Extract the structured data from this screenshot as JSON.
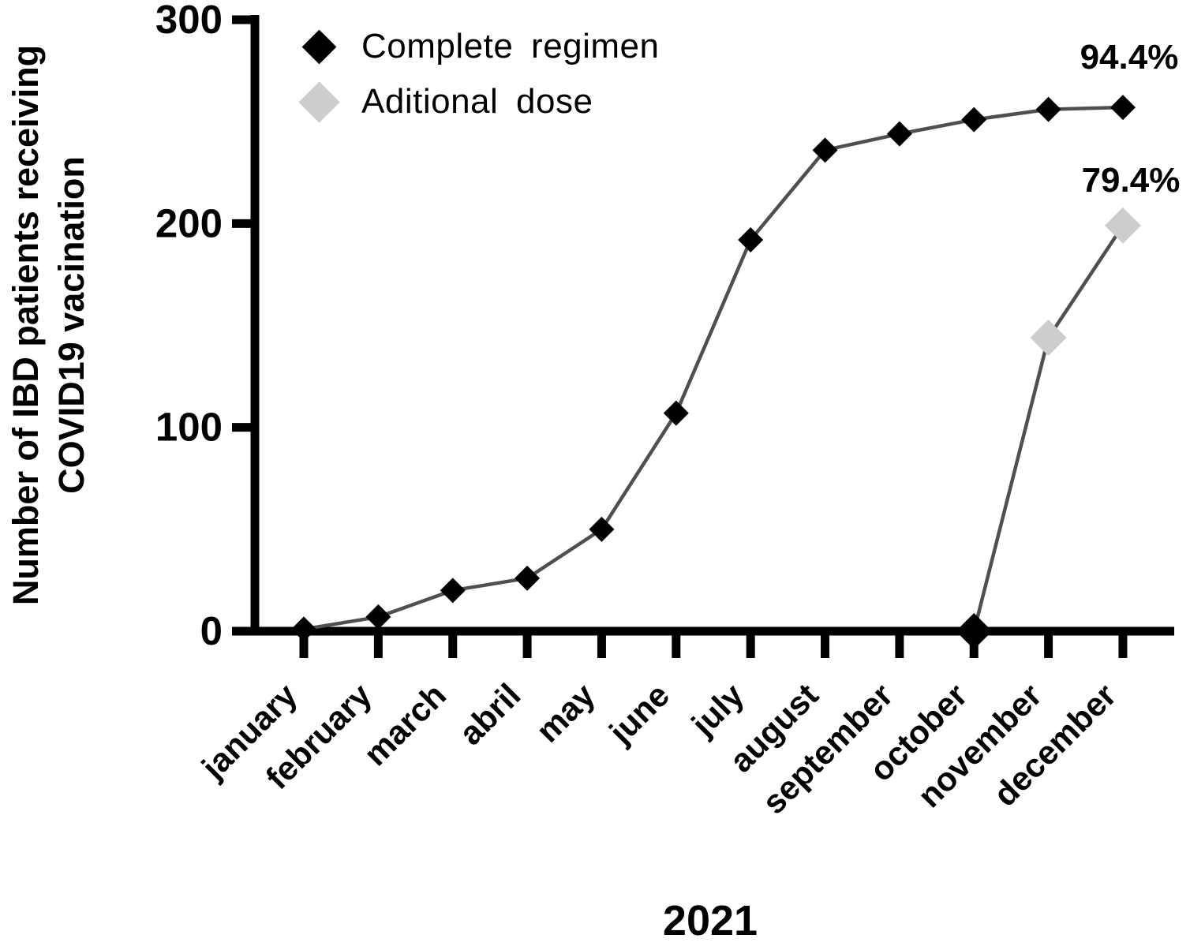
{
  "chart_data": {
    "type": "line",
    "title": "",
    "xlabel": "2021",
    "ylabel_lines": [
      "Number of IBD patients receiving",
      "COVID19 vacination"
    ],
    "categories": [
      "january",
      "february",
      "march",
      "abril",
      "may",
      "june",
      "july",
      "august",
      "september",
      "october",
      "november",
      "december"
    ],
    "ylim": [
      0,
      300
    ],
    "yticks": [
      0,
      100,
      200,
      300
    ],
    "grid": false,
    "legend_position": "inside-top-left",
    "axis_color": "#000000",
    "series": [
      {
        "name": "Complete regimen",
        "marker": "diamond",
        "marker_color": "#000000",
        "line_color": "#4f4f4f",
        "marker_radius": 16,
        "values": [
          1,
          7,
          20,
          26,
          50,
          107,
          192,
          236,
          244,
          251,
          256,
          257
        ],
        "end_label": "94.4%"
      },
      {
        "name": "Aditional dose",
        "marker": "diamond",
        "marker_color": "#cdcdcd",
        "line_color": "#4f4f4f",
        "marker_radius": 23,
        "values": [
          null,
          null,
          null,
          null,
          null,
          null,
          null,
          null,
          null,
          0,
          144,
          199
        ],
        "end_label": "79.4%",
        "marker_color_overrides": {
          "9": "#000000"
        }
      }
    ]
  }
}
